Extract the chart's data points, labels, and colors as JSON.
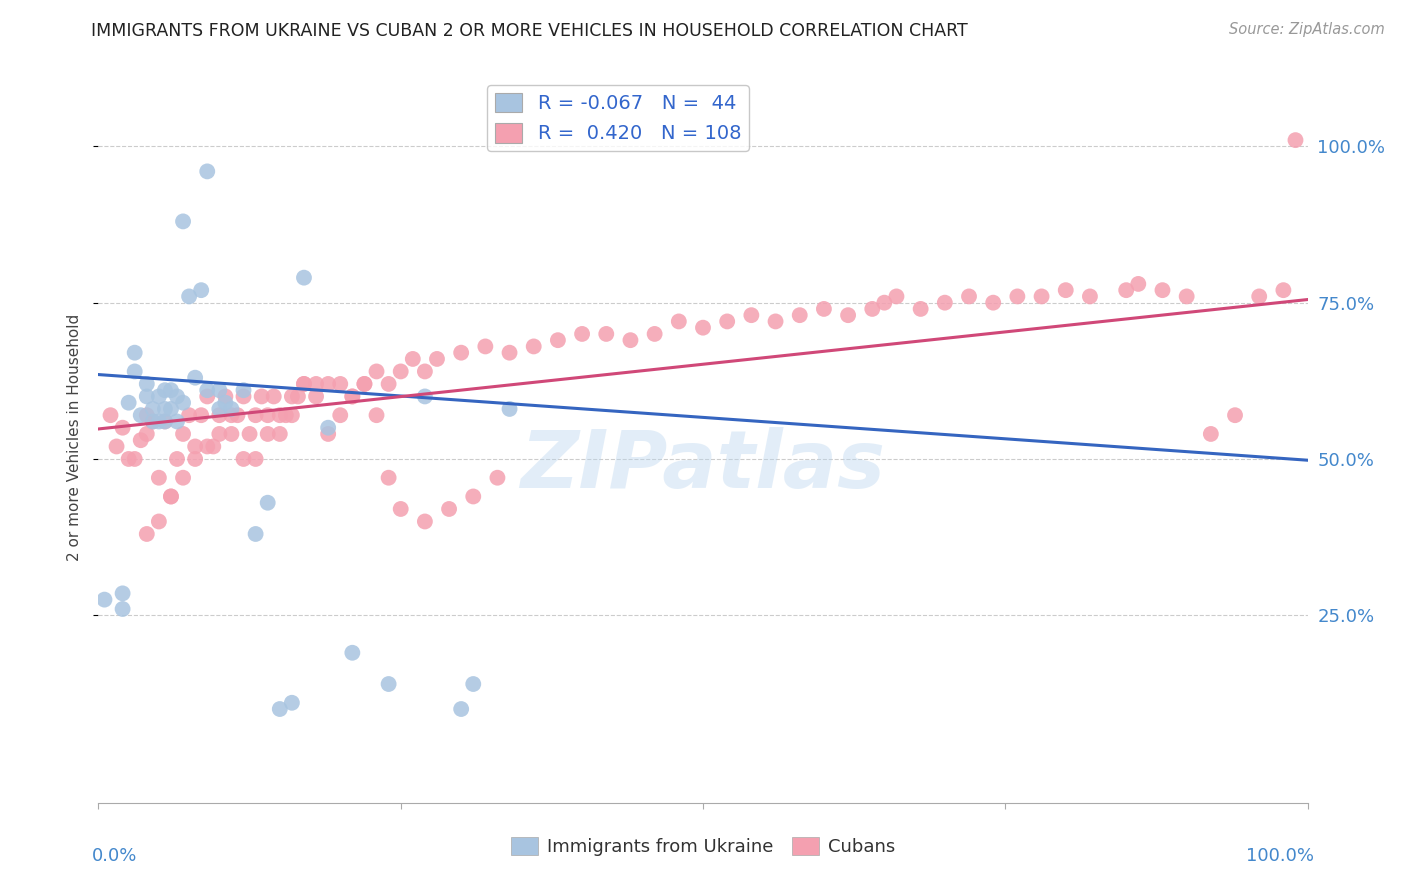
{
  "title": "IMMIGRANTS FROM UKRAINE VS CUBAN 2 OR MORE VEHICLES IN HOUSEHOLD CORRELATION CHART",
  "source": "Source: ZipAtlas.com",
  "ylabel": "2 or more Vehicles in Household",
  "ytick_labels": [
    "25.0%",
    "50.0%",
    "75.0%",
    "100.0%"
  ],
  "ytick_values": [
    0.25,
    0.5,
    0.75,
    1.0
  ],
  "xlim": [
    0.0,
    1.0
  ],
  "ylim": [
    -0.05,
    1.12
  ],
  "ukraine_color": "#a8c4e0",
  "cuba_color": "#f4a0b0",
  "ukraine_line_color": "#3565c0",
  "cuba_line_color": "#d04878",
  "ukraine_R": -0.067,
  "ukraine_N": 44,
  "cuba_R": 0.42,
  "cuba_N": 108,
  "bottom_legend_ukraine": "Immigrants from Ukraine",
  "bottom_legend_cuba": "Cubans",
  "watermark": "ZIPatlas",
  "grid_color": "#cccccc",
  "background_color": "#ffffff",
  "ukraine_line_x0": 0.0,
  "ukraine_line_y0": 0.635,
  "ukraine_line_x1": 1.0,
  "ukraine_line_y1": 0.498,
  "cuba_line_x0": 0.0,
  "cuba_line_y0": 0.548,
  "cuba_line_x1": 1.0,
  "cuba_line_y1": 0.755,
  "ukraine_x": [
    0.005,
    0.02,
    0.02,
    0.025,
    0.03,
    0.03,
    0.035,
    0.04,
    0.04,
    0.045,
    0.045,
    0.05,
    0.05,
    0.055,
    0.055,
    0.055,
    0.06,
    0.06,
    0.065,
    0.065,
    0.07,
    0.07,
    0.075,
    0.08,
    0.085,
    0.09,
    0.09,
    0.1,
    0.1,
    0.105,
    0.11,
    0.12,
    0.13,
    0.14,
    0.15,
    0.16,
    0.17,
    0.19,
    0.21,
    0.24,
    0.27,
    0.3,
    0.31,
    0.34
  ],
  "ukraine_y": [
    0.275,
    0.26,
    0.285,
    0.59,
    0.64,
    0.67,
    0.57,
    0.6,
    0.62,
    0.56,
    0.58,
    0.56,
    0.6,
    0.56,
    0.58,
    0.61,
    0.58,
    0.61,
    0.56,
    0.6,
    0.59,
    0.88,
    0.76,
    0.63,
    0.77,
    0.61,
    0.96,
    0.58,
    0.61,
    0.59,
    0.58,
    0.61,
    0.38,
    0.43,
    0.1,
    0.11,
    0.79,
    0.55,
    0.19,
    0.14,
    0.6,
    0.1,
    0.14,
    0.58
  ],
  "cuba_x": [
    0.01,
    0.015,
    0.02,
    0.025,
    0.03,
    0.035,
    0.04,
    0.045,
    0.05,
    0.055,
    0.06,
    0.065,
    0.07,
    0.075,
    0.08,
    0.085,
    0.09,
    0.095,
    0.1,
    0.105,
    0.11,
    0.115,
    0.12,
    0.125,
    0.13,
    0.135,
    0.14,
    0.145,
    0.15,
    0.155,
    0.16,
    0.165,
    0.17,
    0.18,
    0.19,
    0.2,
    0.21,
    0.22,
    0.23,
    0.24,
    0.25,
    0.26,
    0.27,
    0.28,
    0.3,
    0.32,
    0.34,
    0.36,
    0.38,
    0.4,
    0.42,
    0.44,
    0.46,
    0.48,
    0.5,
    0.52,
    0.54,
    0.56,
    0.58,
    0.6,
    0.62,
    0.64,
    0.65,
    0.66,
    0.68,
    0.7,
    0.72,
    0.74,
    0.76,
    0.78,
    0.8,
    0.82,
    0.85,
    0.86,
    0.88,
    0.9,
    0.92,
    0.94,
    0.96,
    0.98,
    0.99,
    0.04,
    0.04,
    0.05,
    0.06,
    0.07,
    0.08,
    0.09,
    0.1,
    0.11,
    0.12,
    0.13,
    0.14,
    0.15,
    0.16,
    0.17,
    0.18,
    0.19,
    0.2,
    0.21,
    0.22,
    0.23,
    0.24,
    0.25,
    0.27,
    0.29,
    0.31,
    0.33
  ],
  "cuba_y": [
    0.57,
    0.52,
    0.55,
    0.5,
    0.5,
    0.53,
    0.54,
    0.56,
    0.47,
    0.56,
    0.44,
    0.5,
    0.54,
    0.57,
    0.52,
    0.57,
    0.6,
    0.52,
    0.57,
    0.6,
    0.54,
    0.57,
    0.5,
    0.54,
    0.57,
    0.6,
    0.57,
    0.6,
    0.54,
    0.57,
    0.57,
    0.6,
    0.62,
    0.6,
    0.62,
    0.62,
    0.6,
    0.62,
    0.64,
    0.62,
    0.64,
    0.66,
    0.64,
    0.66,
    0.67,
    0.68,
    0.67,
    0.68,
    0.69,
    0.7,
    0.7,
    0.69,
    0.7,
    0.72,
    0.71,
    0.72,
    0.73,
    0.72,
    0.73,
    0.74,
    0.73,
    0.74,
    0.75,
    0.76,
    0.74,
    0.75,
    0.76,
    0.75,
    0.76,
    0.76,
    0.77,
    0.76,
    0.77,
    0.78,
    0.77,
    0.76,
    0.54,
    0.57,
    0.76,
    0.77,
    1.01,
    0.57,
    0.38,
    0.4,
    0.44,
    0.47,
    0.5,
    0.52,
    0.54,
    0.57,
    0.6,
    0.5,
    0.54,
    0.57,
    0.6,
    0.62,
    0.62,
    0.54,
    0.57,
    0.6,
    0.62,
    0.57,
    0.47,
    0.42,
    0.4,
    0.42,
    0.44,
    0.47
  ]
}
